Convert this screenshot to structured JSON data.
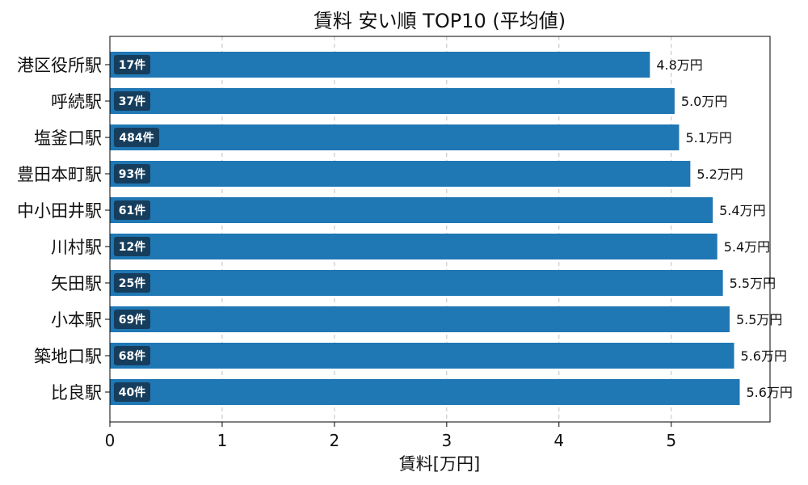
{
  "chart_data": {
    "type": "bar",
    "orientation": "horizontal",
    "title": "賃料 安い順 TOP10 (平均値)",
    "xlabel": "賃料[万円]",
    "ylabel": "",
    "xlim": [
      0,
      5.88
    ],
    "xticks": [
      0,
      1,
      2,
      3,
      4,
      5
    ],
    "grid": "x",
    "bar_color": "#1f77b4",
    "badge_color": "#163d5c",
    "categories": [
      "港区役所駅",
      "呼続駅",
      "塩釜口駅",
      "豊田本町駅",
      "中小田井駅",
      "川村駅",
      "矢田駅",
      "小本駅",
      "築地口駅",
      "比良駅"
    ],
    "values": [
      4.81,
      5.03,
      5.07,
      5.17,
      5.37,
      5.41,
      5.46,
      5.52,
      5.56,
      5.61
    ],
    "value_labels": [
      "4.8万円",
      "5.0万円",
      "5.1万円",
      "5.2万円",
      "5.4万円",
      "5.4万円",
      "5.5万円",
      "5.5万円",
      "5.6万円",
      "5.6万円"
    ],
    "counts": [
      "17件",
      "37件",
      "484件",
      "93件",
      "61件",
      "12件",
      "25件",
      "69件",
      "68件",
      "40件"
    ]
  }
}
